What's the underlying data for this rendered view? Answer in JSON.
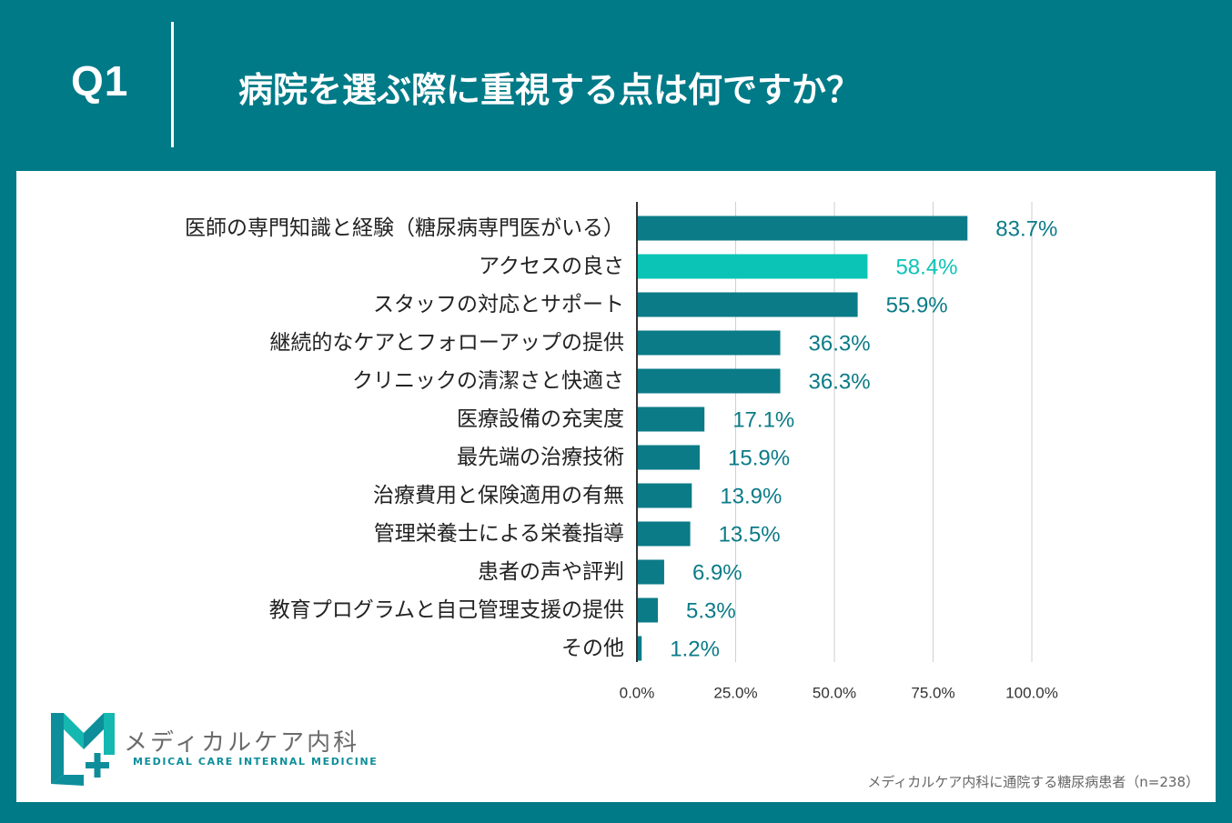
{
  "header": {
    "question_label": "Q1",
    "question_text": "病院を選ぶ際に重視する点は何ですか？"
  },
  "colors": {
    "background": "#007a87",
    "bar": "#0b7b87",
    "bar_highlight": "#0cc4b6",
    "value_label": "#0b7b87",
    "value_label_highlight": "#0cc4b6"
  },
  "chart_data": {
    "type": "bar",
    "orientation": "horizontal",
    "categories": [
      "医師の専門知識と経験（糖尿病専門医がいる）",
      "アクセスの良さ",
      "スタッフの対応とサポート",
      "継続的なケアとフォローアップの提供",
      "クリニックの清潔さと快適さ",
      "医療設備の充実度",
      "最先端の治療技術",
      "治療費用と保険適用の有無",
      "管理栄養士による栄養指導",
      "患者の声や評判",
      "教育プログラムと自己管理支援の提供",
      "その他"
    ],
    "values": [
      83.7,
      58.4,
      55.9,
      36.3,
      36.3,
      17.1,
      15.9,
      13.9,
      13.5,
      6.9,
      5.3,
      1.2
    ],
    "value_labels": [
      "83.7%",
      "58.4%",
      "55.9%",
      "36.3%",
      "36.3%",
      "17.1%",
      "15.9%",
      "13.9%",
      "13.5%",
      "6.9%",
      "5.3%",
      "1.2%"
    ],
    "highlight_index": 1,
    "xlim": [
      0,
      100
    ],
    "xticks": [
      0,
      25,
      50,
      75,
      100
    ],
    "xtick_labels": [
      "0.0%",
      "25.0%",
      "50.0%",
      "75.0%",
      "100.0%"
    ],
    "grid": "vertical",
    "title": "",
    "xlabel": "",
    "ylabel": ""
  },
  "logo": {
    "name": "メディカルケア内科",
    "subtitle": "MEDICAL CARE INTERNAL MEDICINE"
  },
  "source": "メディカルケア内科に通院する糖尿病患者（n=238）"
}
